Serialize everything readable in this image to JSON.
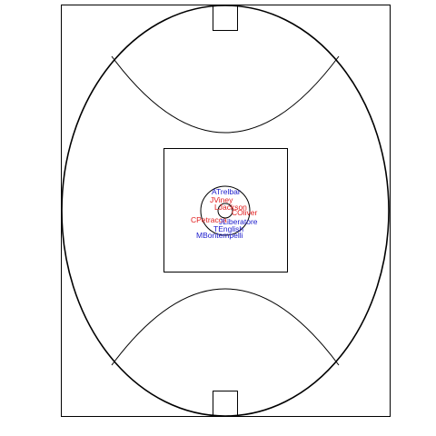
{
  "diagram": {
    "field": "australian-rules-football-ground",
    "colors": {
      "line": "#000000",
      "red_team": "#e01b1b",
      "blue_team": "#1b1bcc"
    },
    "players": [
      {
        "name": "ATrelbar",
        "team": "blue"
      },
      {
        "name": "JViney",
        "team": "red"
      },
      {
        "name": "LJackson",
        "team": "red"
      },
      {
        "name": "COliver",
        "team": "red"
      },
      {
        "name": "CPetracca",
        "team": "red"
      },
      {
        "name": "JLiberatore",
        "team": "blue"
      },
      {
        "name": "TEnglish",
        "team": "blue"
      },
      {
        "name": "MBontempelli",
        "team": "blue"
      }
    ]
  }
}
